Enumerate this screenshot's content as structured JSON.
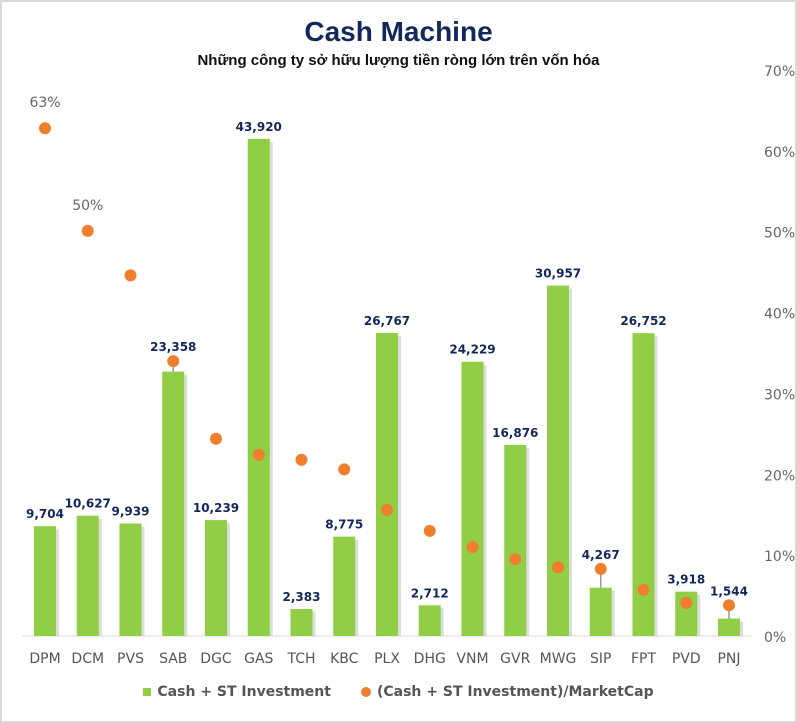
{
  "chart_data": {
    "type": "bar",
    "title": "Cash Machine",
    "subtitle": "Những công ty sở hữu lượng tiền ròng lớn trên vốn hóa",
    "categories": [
      "DPM",
      "DCM",
      "PVS",
      "SAB",
      "DGC",
      "GAS",
      "TCH",
      "KBC",
      "PLX",
      "DHG",
      "VNM",
      "GVR",
      "MWG",
      "SIP",
      "FPT",
      "PVD",
      "PNJ"
    ],
    "series": [
      {
        "name": "Cash + ST Investment",
        "type": "bar",
        "axis": "left",
        "color": "#8fce45",
        "values": [
          9704,
          10627,
          9939,
          23358,
          10239,
          43920,
          2383,
          8775,
          26767,
          2712,
          24229,
          16876,
          30957,
          4267,
          26752,
          3918,
          1544
        ],
        "labels": [
          "9,704",
          "10,627",
          "9,939",
          "23,358",
          "10,239",
          "43,920",
          "2,383",
          "8,775",
          "26,767",
          "2,712",
          "24,229",
          "16,876",
          "30,957",
          "4,267",
          "26,752",
          "3,918",
          "1,544"
        ]
      },
      {
        "name": "(Cash + ST Investment)/MarketCap",
        "type": "scatter",
        "axis": "right",
        "color": "#f07f2d",
        "values": [
          62.8,
          50.1,
          44.6,
          34.0,
          24.4,
          22.4,
          21.8,
          20.6,
          15.6,
          13.0,
          11.0,
          9.5,
          8.5,
          8.3,
          5.7,
          4.1,
          3.8
        ],
        "shown_labels": {
          "0": "63%",
          "1": "50%"
        }
      }
    ],
    "left_ylim": [
      0,
      50000
    ],
    "right_ylim": [
      0,
      70
    ],
    "right_ticks": [
      "0%",
      "10%",
      "20%",
      "30%",
      "40%",
      "50%",
      "60%",
      "70%"
    ],
    "legend": "bottom",
    "grid": false
  }
}
